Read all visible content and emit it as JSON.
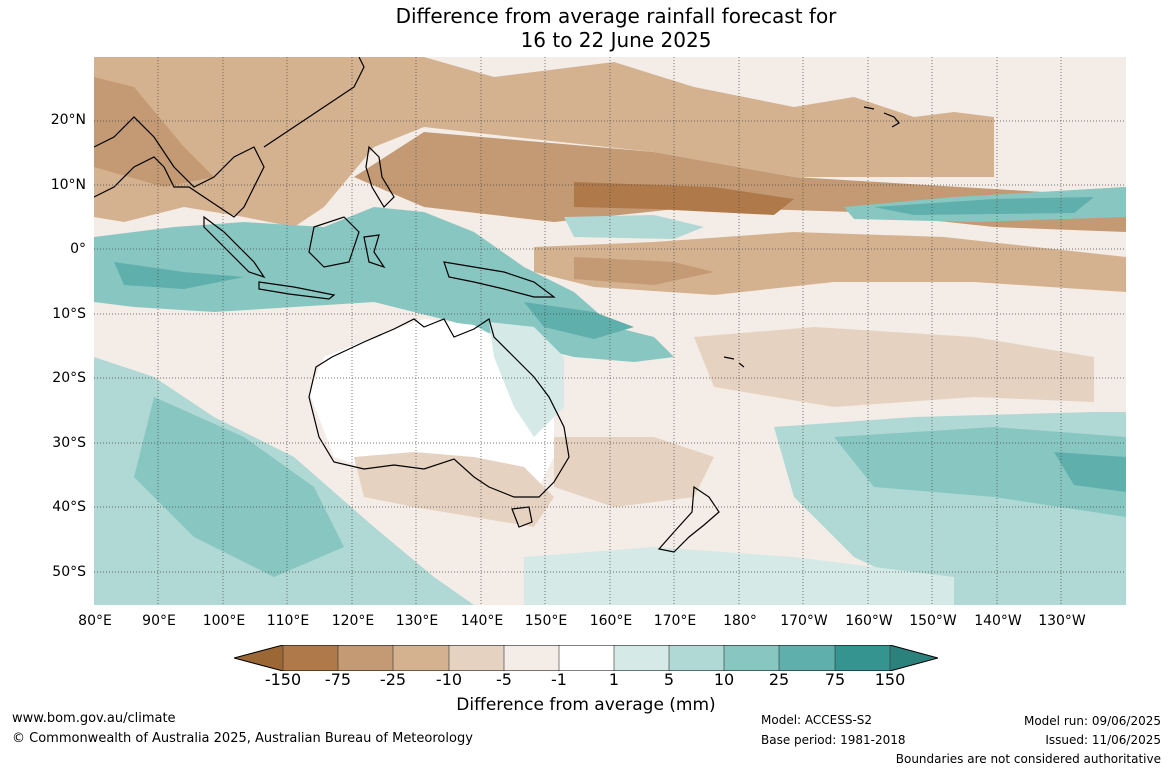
{
  "title": {
    "line1": "Difference from average rainfall forecast for",
    "line2": "16 to 22 June 2025"
  },
  "map": {
    "latitude_labels": [
      "20°N",
      "10°N",
      "0°",
      "10°S",
      "20°S",
      "30°S",
      "40°S",
      "50°S"
    ],
    "longitude_labels": [
      "80°E",
      "90°E",
      "100°E",
      "110°E",
      "120°E",
      "130°E",
      "140°E",
      "150°E",
      "160°E",
      "170°E",
      "180°",
      "170°W",
      "160°W",
      "150°W",
      "140°W",
      "130°W"
    ]
  },
  "colorbar": {
    "labels": [
      "-150",
      "-75",
      "-25",
      "-10",
      "-5",
      "-1",
      "1",
      "5",
      "10",
      "25",
      "75",
      "150"
    ],
    "colors": [
      "#9b6835",
      "#b0794a",
      "#c39a73",
      "#d4b290",
      "#e6d2c0",
      "#f4ece6",
      "#ffffff",
      "#d5e9e7",
      "#b0d9d6",
      "#88c6c2",
      "#5fafac",
      "#35948f",
      "#2b817c"
    ],
    "title": "Difference from average (mm)"
  },
  "footer": {
    "website": "www.bom.gov.au/climate",
    "copyright": "© Commonwealth of Australia 2025, Australian Bureau of Meteorology",
    "model": "Model: ACCESS-S2",
    "base_period": "Base period: 1981-2018",
    "model_run": "Model run: 09/06/2025",
    "issued": "Issued: 11/06/2025",
    "disclaimer": "Boundaries are not considered authoritative"
  }
}
